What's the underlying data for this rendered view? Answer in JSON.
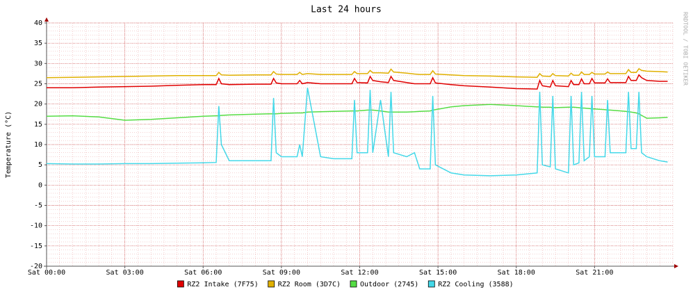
{
  "chart_data": {
    "type": "line",
    "title": "Last 24 hours",
    "y_label": "Temperature (°C)",
    "watermark": "RRDTOOL / TOBI OETIKER",
    "x": [
      0,
      1,
      2,
      3,
      4,
      5,
      6,
      6.5,
      6.6,
      6.7,
      7,
      8,
      8.6,
      8.7,
      8.8,
      9,
      9.6,
      9.7,
      9.8,
      10,
      10.5,
      11,
      11.7,
      11.8,
      11.9,
      12.3,
      12.4,
      12.5,
      12.8,
      13.1,
      13.2,
      13.3,
      13.8,
      14.1,
      14.3,
      14.7,
      14.8,
      14.9,
      15.5,
      16,
      17,
      18,
      18.8,
      18.9,
      19.0,
      19.3,
      19.4,
      19.5,
      20.0,
      20.1,
      20.2,
      20.4,
      20.5,
      20.6,
      20.8,
      20.9,
      21.0,
      21.4,
      21.5,
      21.6,
      22.2,
      22.3,
      22.4,
      22.6,
      22.7,
      22.8,
      23,
      23.5,
      23.8
    ],
    "series": [
      {
        "name": "RZ2 Intake (7F75)",
        "color": "#e00000",
        "values": [
          24,
          24,
          24.2,
          24.3,
          24.4,
          24.6,
          24.8,
          24.8,
          26.3,
          25,
          24.8,
          24.9,
          24.9,
          26.3,
          25.2,
          25,
          25,
          25.8,
          25,
          25.3,
          25,
          25,
          25,
          26.3,
          25.3,
          25.2,
          26.8,
          25.8,
          25.5,
          25.3,
          26.8,
          25.8,
          25.3,
          25,
          25,
          25,
          26.5,
          25.2,
          24.8,
          24.5,
          24.2,
          23.8,
          23.7,
          25.8,
          24.5,
          24.2,
          25.8,
          24.5,
          24.3,
          25.8,
          24.8,
          24.8,
          26.2,
          25,
          25,
          26.3,
          25.2,
          25.2,
          26.2,
          25.3,
          25.3,
          26.8,
          25.8,
          25.8,
          27.2,
          26.5,
          25.8,
          25.6,
          25.6
        ]
      },
      {
        "name": "RZ2 Room (3D7C)",
        "color": "#e0b000",
        "values": [
          26.5,
          26.6,
          26.7,
          26.8,
          26.9,
          27,
          27,
          27,
          27.8,
          27.2,
          27.1,
          27.2,
          27.2,
          28,
          27.4,
          27.3,
          27.3,
          27.8,
          27.3,
          27.5,
          27.3,
          27.3,
          27.3,
          28,
          27.5,
          27.5,
          28.3,
          27.7,
          27.7,
          27.6,
          28.6,
          27.9,
          27.6,
          27.4,
          27.3,
          27.3,
          28.2,
          27.4,
          27.2,
          27,
          26.9,
          26.7,
          26.6,
          27.5,
          26.9,
          26.8,
          27.5,
          27,
          26.9,
          27.6,
          27.1,
          27.1,
          27.9,
          27.3,
          27.3,
          27.8,
          27.4,
          27.4,
          27.9,
          27.5,
          27.5,
          28.5,
          27.8,
          27.8,
          28.7,
          28.3,
          28.1,
          28,
          27.9
        ]
      },
      {
        "name": "Outdoor (2745)",
        "color": "#55dd44",
        "values": [
          17,
          17.1,
          16.8,
          16,
          16.2,
          16.6,
          17,
          17.1,
          17.1,
          17.2,
          17.3,
          17.5,
          17.6,
          17.6,
          17.6,
          17.7,
          17.8,
          17.8,
          17.8,
          18,
          18.1,
          18.2,
          18.3,
          18.3,
          18.3,
          18.5,
          18.5,
          18.5,
          18.3,
          18,
          18,
          18,
          18,
          18.1,
          18.2,
          18.3,
          18.5,
          18.6,
          19.3,
          19.6,
          19.9,
          19.6,
          19.3,
          19.3,
          19.2,
          19.2,
          19.1,
          19.1,
          19.2,
          19.2,
          19.2,
          19.1,
          19,
          19,
          18.9,
          18.8,
          18.8,
          18.6,
          18.5,
          18.5,
          18.2,
          18.1,
          18,
          17.8,
          17.6,
          17.2,
          16.5,
          16.6,
          16.7
        ]
      },
      {
        "name": "RZ2 Cooling (3588)",
        "color": "#44d8e8",
        "values": [
          5.3,
          5.2,
          5.2,
          5.3,
          5.3,
          5.4,
          5.5,
          5.6,
          19.5,
          10,
          6,
          6,
          6,
          21.5,
          8,
          7,
          7,
          10,
          7,
          24,
          7,
          6.5,
          6.5,
          21,
          8,
          8,
          23.5,
          8,
          21,
          7,
          23,
          8,
          7,
          8,
          4,
          4,
          22,
          5,
          3,
          2.5,
          2.3,
          2.5,
          3,
          23,
          5,
          4.5,
          22,
          4,
          3,
          22,
          5,
          5.5,
          23,
          6,
          7,
          22,
          7,
          7,
          21,
          8,
          8,
          23,
          9,
          9,
          23,
          8,
          7,
          6,
          5.7
        ]
      }
    ],
    "xlim": [
      0,
      24
    ],
    "xticks": [
      {
        "value": 0,
        "label": "Sat 00:00"
      },
      {
        "value": 3,
        "label": "Sat 03:00"
      },
      {
        "value": 6,
        "label": "Sat 06:00"
      },
      {
        "value": 9,
        "label": "Sat 09:00"
      },
      {
        "value": 12,
        "label": "Sat 12:00"
      },
      {
        "value": 15,
        "label": "Sat 15:00"
      },
      {
        "value": 18,
        "label": "Sat 18:00"
      },
      {
        "value": 21,
        "label": "Sat 21:00"
      }
    ],
    "ylim": [
      -20,
      40
    ],
    "yticks": [
      -20,
      -15,
      -10,
      -5,
      0,
      5,
      10,
      15,
      20,
      25,
      30,
      35,
      40
    ],
    "grid": true,
    "minor_grid": true,
    "legend": "bottom"
  }
}
